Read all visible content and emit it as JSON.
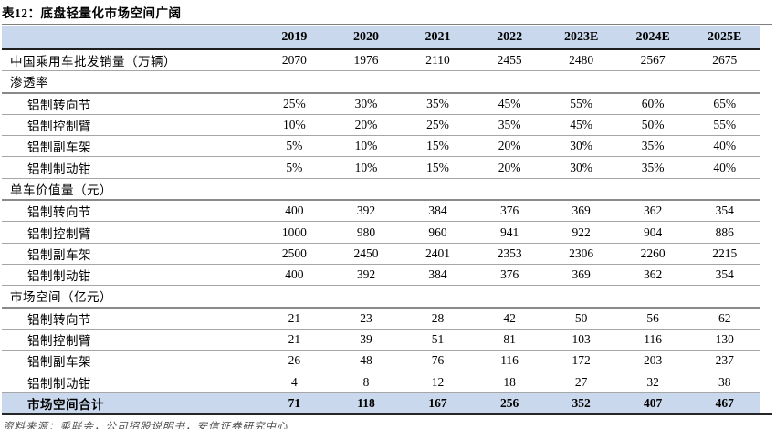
{
  "title": "表12：底盘轻量化市场空间广阔",
  "source_note": "资料来源：乘联会，公司招股说明书，安信证券研究中心",
  "colors": {
    "header_bg": "#C9D8EC",
    "total_row_bg": "#C9D8EC",
    "header_rule": "#1f1f1f",
    "row_rule": "#a6a6a6"
  },
  "table": {
    "corner_label": "",
    "columns": [
      "2019",
      "2020",
      "2021",
      "2022",
      "2023E",
      "2024E",
      "2025E"
    ],
    "rows": [
      {
        "label": "中国乘用车批发销量（万辆）",
        "type": "data",
        "indent": false,
        "values": [
          "2070",
          "1976",
          "2110",
          "2455",
          "2480",
          "2567",
          "2675"
        ]
      },
      {
        "label": "渗透率",
        "type": "section",
        "indent": false,
        "values": []
      },
      {
        "label": "铝制转向节",
        "type": "data",
        "indent": true,
        "values": [
          "25%",
          "30%",
          "35%",
          "45%",
          "55%",
          "60%",
          "65%"
        ]
      },
      {
        "label": "铝制控制臂",
        "type": "data",
        "indent": true,
        "values": [
          "10%",
          "20%",
          "25%",
          "35%",
          "45%",
          "50%",
          "55%"
        ]
      },
      {
        "label": "铝制副车架",
        "type": "data",
        "indent": true,
        "values": [
          "5%",
          "10%",
          "15%",
          "20%",
          "30%",
          "35%",
          "40%"
        ]
      },
      {
        "label": "铝制制动钳",
        "type": "data",
        "indent": true,
        "values": [
          "5%",
          "10%",
          "15%",
          "20%",
          "30%",
          "35%",
          "40%"
        ]
      },
      {
        "label": "单车价值量（元）",
        "type": "section",
        "indent": false,
        "values": []
      },
      {
        "label": "铝制转向节",
        "type": "data",
        "indent": true,
        "values": [
          "400",
          "392",
          "384",
          "376",
          "369",
          "362",
          "354"
        ]
      },
      {
        "label": "铝制控制臂",
        "type": "data",
        "indent": true,
        "values": [
          "1000",
          "980",
          "960",
          "941",
          "922",
          "904",
          "886"
        ]
      },
      {
        "label": "铝制副车架",
        "type": "data",
        "indent": true,
        "values": [
          "2500",
          "2450",
          "2401",
          "2353",
          "2306",
          "2260",
          "2215"
        ]
      },
      {
        "label": "铝制制动钳",
        "type": "data",
        "indent": true,
        "values": [
          "400",
          "392",
          "384",
          "376",
          "369",
          "362",
          "354"
        ]
      },
      {
        "label": "市场空间（亿元）",
        "type": "section",
        "indent": false,
        "values": []
      },
      {
        "label": "铝制转向节",
        "type": "data",
        "indent": true,
        "values": [
          "21",
          "23",
          "28",
          "42",
          "50",
          "56",
          "62"
        ]
      },
      {
        "label": "铝制控制臂",
        "type": "data",
        "indent": true,
        "values": [
          "21",
          "39",
          "51",
          "81",
          "103",
          "116",
          "130"
        ]
      },
      {
        "label": "铝制副车架",
        "type": "data",
        "indent": true,
        "values": [
          "26",
          "48",
          "76",
          "116",
          "172",
          "203",
          "237"
        ]
      },
      {
        "label": "铝制制动钳",
        "type": "data",
        "indent": true,
        "values": [
          "4",
          "8",
          "12",
          "18",
          "27",
          "32",
          "38"
        ]
      },
      {
        "label": "市场空间合计",
        "type": "total",
        "indent": true,
        "values": [
          "71",
          "118",
          "167",
          "256",
          "352",
          "407",
          "467"
        ]
      }
    ]
  }
}
